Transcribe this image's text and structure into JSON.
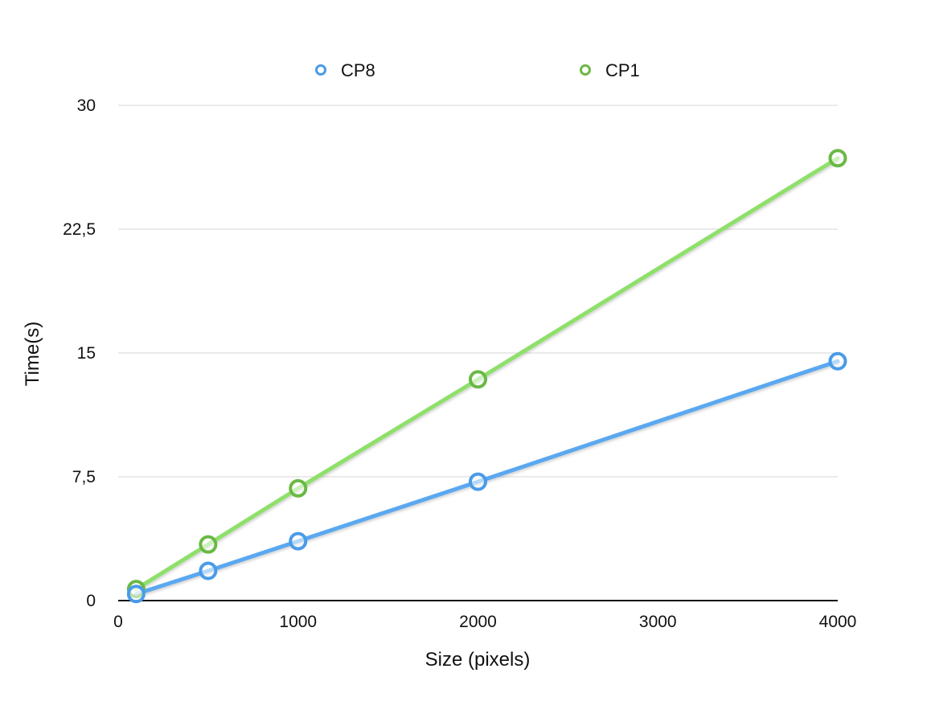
{
  "chart_data": {
    "type": "line",
    "title": "",
    "xlabel": "Size (pixels)",
    "ylabel": "Time(s)",
    "xlim": [
      0,
      4000
    ],
    "ylim": [
      0,
      30
    ],
    "x_ticks": [
      0,
      1000,
      2000,
      3000,
      4000
    ],
    "x_tick_labels": [
      "0",
      "1000",
      "2000",
      "3000",
      "4000"
    ],
    "y_ticks": [
      0,
      7.5,
      15,
      22.5,
      30
    ],
    "y_tick_labels": [
      "0",
      "7,5",
      "15",
      "22,5",
      "30"
    ],
    "grid": "horizontal",
    "legend_position": "top",
    "series": [
      {
        "name": "CP8",
        "color": "#5AA8F0",
        "marker_color": "#4A9BE8",
        "x": [
          100,
          500,
          1000,
          2000,
          4000
        ],
        "y": [
          0.4,
          1.8,
          3.6,
          7.2,
          14.5
        ]
      },
      {
        "name": "CP1",
        "color": "#8EE06A",
        "marker_color": "#6BB845",
        "x": [
          100,
          500,
          1000,
          2000,
          4000
        ],
        "y": [
          0.7,
          3.4,
          6.8,
          13.4,
          26.8
        ]
      }
    ]
  }
}
